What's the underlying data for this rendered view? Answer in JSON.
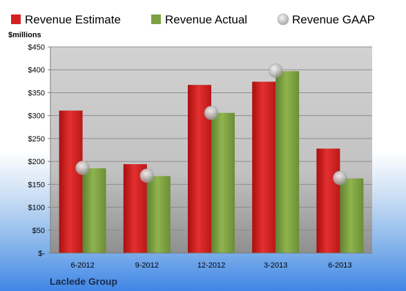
{
  "chart_data": {
    "type": "bar",
    "ylabel": "$millions",
    "categories": [
      "6-2012",
      "9-2012",
      "12-2012",
      "3-2013",
      "6-2013"
    ],
    "y_ticks": [
      "$-",
      "$50",
      "$100",
      "$150",
      "$200",
      "$250",
      "$300",
      "$350",
      "$400",
      "$450"
    ],
    "ylim": [
      0,
      450
    ],
    "legend_position": "top",
    "grid": true,
    "series": [
      {
        "name": "Revenue Estimate",
        "kind": "bar",
        "color": "#d42020",
        "values": [
          311,
          194,
          367,
          374,
          228
        ]
      },
      {
        "name": "Revenue Actual",
        "kind": "bar",
        "color": "#7da043",
        "values": [
          185,
          168,
          306,
          397,
          163
        ]
      },
      {
        "name": "Revenue GAAP",
        "kind": "marker",
        "color": "#c8c8c8",
        "values": [
          186,
          169,
          306,
          398,
          164
        ]
      }
    ],
    "footer": "Laclede Group"
  }
}
